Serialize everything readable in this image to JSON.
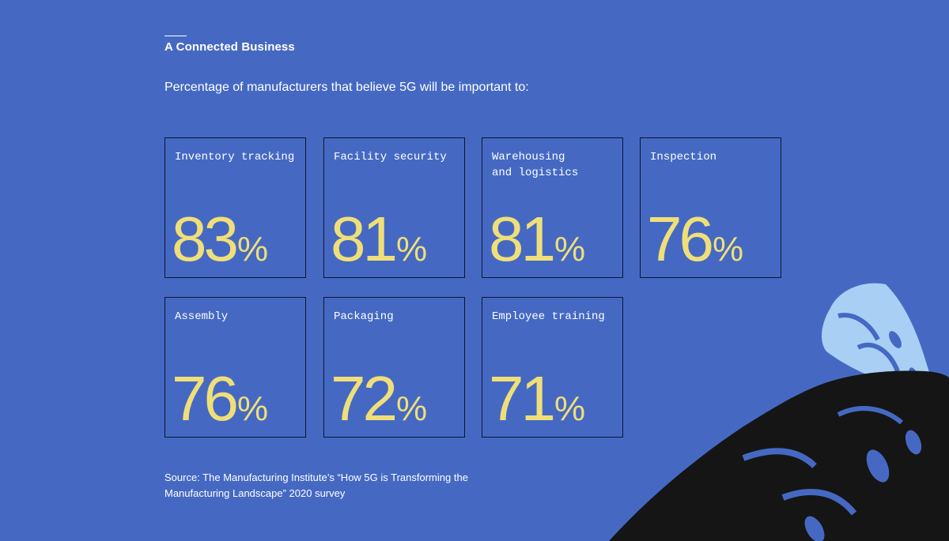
{
  "header": {
    "title": "A Connected Business",
    "subtitle": "Percentage of manufacturers that believe 5G will be important to:"
  },
  "chart_data": {
    "type": "table",
    "title": "Percentage of manufacturers that believe 5G will be important to:",
    "unit": "%",
    "items": [
      {
        "label": "Inventory tracking",
        "value": 83
      },
      {
        "label": "Facility security",
        "value": 81
      },
      {
        "label": "Warehousing\nand logistics",
        "value": 81
      },
      {
        "label": "Inspection",
        "value": 76
      },
      {
        "label": "Assembly",
        "value": 76
      },
      {
        "label": "Packaging",
        "value": 72
      },
      {
        "label": "Employee training",
        "value": 71
      }
    ]
  },
  "colors": {
    "background": "#4569c3",
    "value": "#f0df78",
    "border": "#0d1530",
    "leaf_light": "#a9cff5",
    "leaf_dark": "#151515"
  },
  "footer": {
    "source": "Source: The Manufacturing Institute’s “How 5G is Transforming the Manufacturing Landscape” 2020 survey"
  }
}
